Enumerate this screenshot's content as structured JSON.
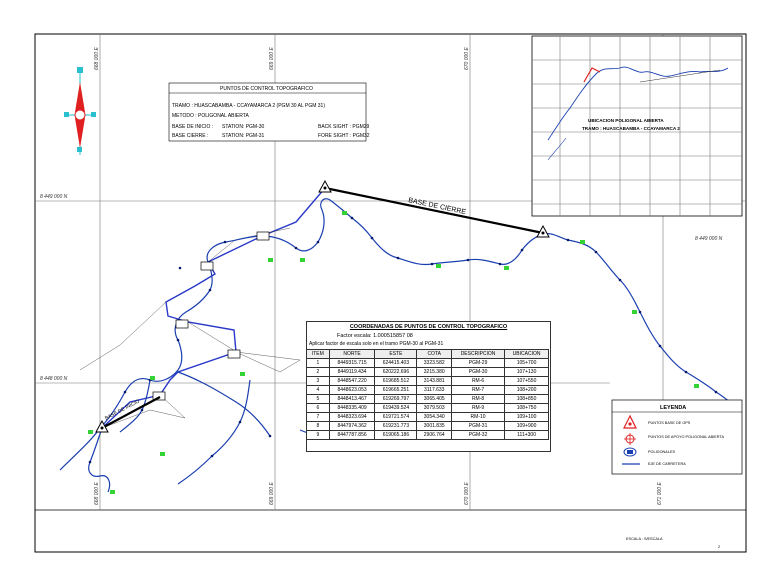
{
  "grid_labels": {
    "north_left": "8 449 000 N",
    "north_right": "8 449 000 N",
    "north_low": "8 448 000 N",
    "east_1": "668 000 E",
    "east_2": "669 000 E",
    "east_3": "670 000 E",
    "east_4": "671 000 E"
  },
  "control_box": {
    "title": "PUNTOS DE CONTROL TOPOGRAFICO",
    "tramo": "TRAMO : HUASCABAMBA - CCAYAMARCA 2 (PGM 30 AL PGM 31)",
    "metodo": "METODO : POLIGONAL ABIERTA",
    "base_inicio": "BASE DE INICIO :",
    "base_inicio_station": "STATION: PGM-30",
    "back_sight": "BACK SIGHT : PGM29",
    "base_cierre": "BASE CIERRE :",
    "base_cierre_station": "STATION: PGM-31",
    "fore_sight": "FORE SIGHT : PGM32"
  },
  "inset": {
    "line1": "UBICACION POLIGONAL ABIERTA",
    "line2": "TRAMO : HUASCABAMBA - CCAYAMARCA 2"
  },
  "map_labels": {
    "base_cierre": "BASE DE CIERRE",
    "base_inicio": "BASE DE INICIO"
  },
  "coord_table": {
    "title": "COORDENADAS DE PUNTOS DE CONTROL TOPOGRAFICO",
    "factor": "Factor escala: 1.000515857 08",
    "note": "Aplicar factor de escala solo en el tramo PGM-30 al PGM-31",
    "headers": [
      "ITEM",
      "NORTE",
      "ESTE",
      "COTA",
      "DESCRIPCION",
      "UBICACION"
    ],
    "rows": [
      [
        "1",
        "8449315.715",
        "624415.403",
        "3323.582",
        "PGM-29",
        "105+700"
      ],
      [
        "2",
        "8449119.434",
        "620222.696",
        "3215.380",
        "PGM-30",
        "107+130"
      ],
      [
        "3",
        "8448547.220",
        "619685.512",
        "3143.881",
        "RM-6",
        "107+550"
      ],
      [
        "4",
        "8448623.053",
        "619665.251",
        "3117.633",
        "RM-7",
        "108+200"
      ],
      [
        "5",
        "8448413.467",
        "619269.797",
        "3065.405",
        "RM-8",
        "108+850"
      ],
      [
        "6",
        "8448335.409",
        "619439.524",
        "3079.503",
        "RM-9",
        "108+750"
      ],
      [
        "7",
        "8448323.694",
        "619721.574",
        "3054.340",
        "RM-10",
        "109+100"
      ],
      [
        "8",
        "8447974.362",
        "619231.773",
        "3001.835",
        "PGM-31",
        "109+900"
      ],
      [
        "9",
        "8447787.856",
        "619065.186",
        "2906.764",
        "PGM-32",
        "111+300"
      ]
    ]
  },
  "legend": {
    "title": "LEYENDA",
    "items": [
      "PUNTOS BASE DE GPS",
      "PUNTOS DE APOYO POLIGONAL ABIERTA",
      "POLIGONALES",
      "EJE DE CARRETERA"
    ]
  },
  "title_block": {
    "scale_label": "ESCALA : S/ESCALA",
    "sheet_label": "2"
  },
  "colors": {
    "route": "#1a3fb0",
    "gps": "#35d235",
    "north_red": "#e02020",
    "north_cyan": "#2bc0d0"
  }
}
